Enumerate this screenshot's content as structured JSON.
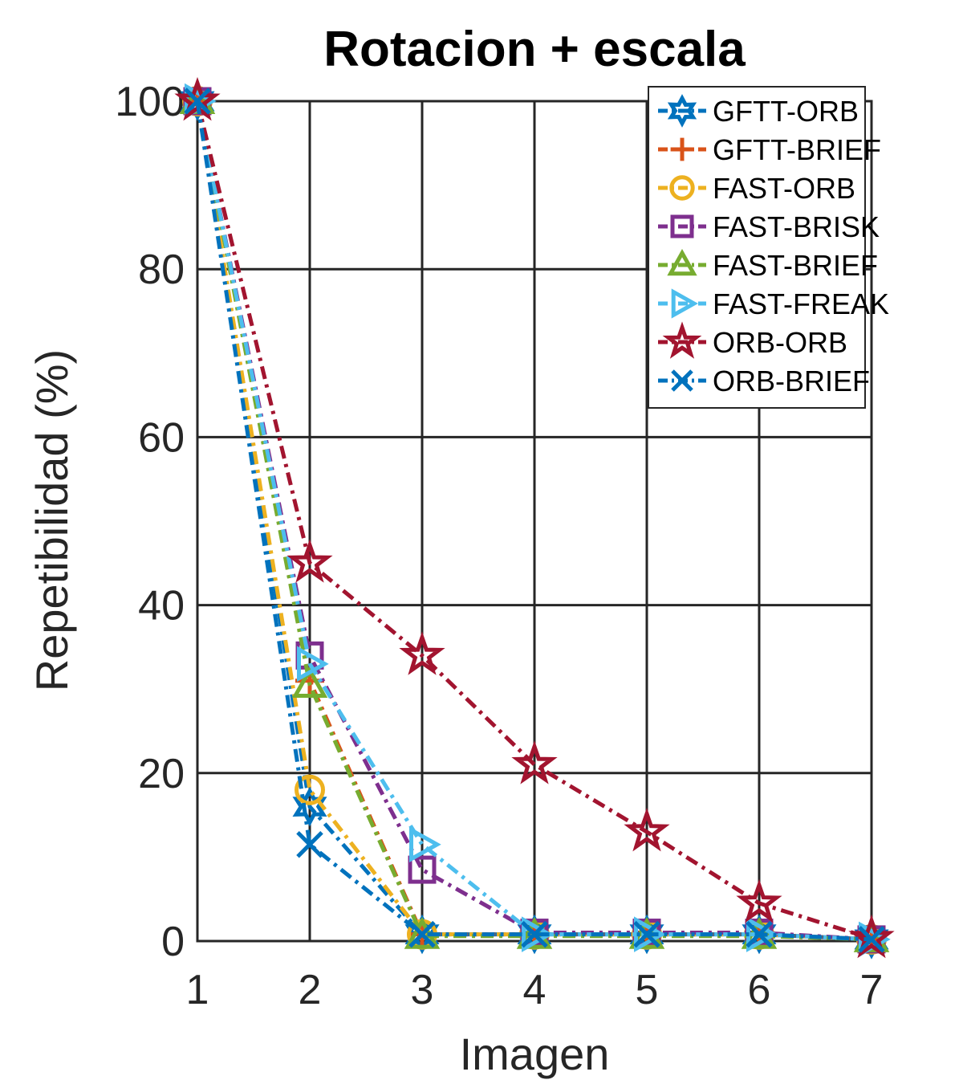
{
  "chart_data": {
    "type": "line",
    "title": "Rotacion + escala",
    "xlabel": "Imagen",
    "ylabel": "Repetibilidad (%)",
    "xlim": [
      1,
      7
    ],
    "ylim": [
      0,
      100
    ],
    "xticks": [
      "1",
      "2",
      "3",
      "4",
      "5",
      "6",
      "7"
    ],
    "yticks": [
      "0",
      "20",
      "40",
      "60",
      "80",
      "100"
    ],
    "grid": true,
    "legend_position": "top-right",
    "x": [
      1,
      2,
      3,
      4,
      5,
      6,
      7
    ],
    "series": [
      {
        "name": "GFTT-ORB",
        "color": "#0072BD",
        "marker": "hexagram",
        "values": [
          100,
          16,
          0.8,
          0.8,
          0.8,
          0.8,
          0.2
        ]
      },
      {
        "name": "GFTT-BRIEF",
        "color": "#D95319",
        "marker": "plus",
        "values": [
          100,
          31,
          0.8,
          0.8,
          0.8,
          0.8,
          0.2
        ]
      },
      {
        "name": "FAST-ORB",
        "color": "#EDB120",
        "marker": "circle",
        "values": [
          100,
          18,
          0.8,
          0.8,
          0.8,
          0.8,
          0.2
        ]
      },
      {
        "name": "FAST-BRISK",
        "color": "#7E2F8E",
        "marker": "square",
        "values": [
          100,
          34,
          8.5,
          1,
          1,
          1,
          0.2
        ]
      },
      {
        "name": "FAST-BRIEF",
        "color": "#77AC30",
        "marker": "triangle-up",
        "values": [
          100,
          30.5,
          0.6,
          0.6,
          0.6,
          0.6,
          0.2
        ]
      },
      {
        "name": "FAST-FREAK",
        "color": "#4DBEEE",
        "marker": "triangle-right",
        "values": [
          100,
          33,
          11.5,
          0.8,
          0.8,
          0.8,
          0.2
        ]
      },
      {
        "name": "ORB-ORB",
        "color": "#A2142F",
        "marker": "pentagram",
        "values": [
          100,
          45,
          34,
          21,
          13,
          4.5,
          0.3
        ]
      },
      {
        "name": "ORB-BRIEF",
        "color": "#0072BD",
        "marker": "x",
        "values": [
          100,
          11.5,
          0.8,
          0.8,
          0.8,
          0.8,
          0.2
        ]
      }
    ]
  }
}
